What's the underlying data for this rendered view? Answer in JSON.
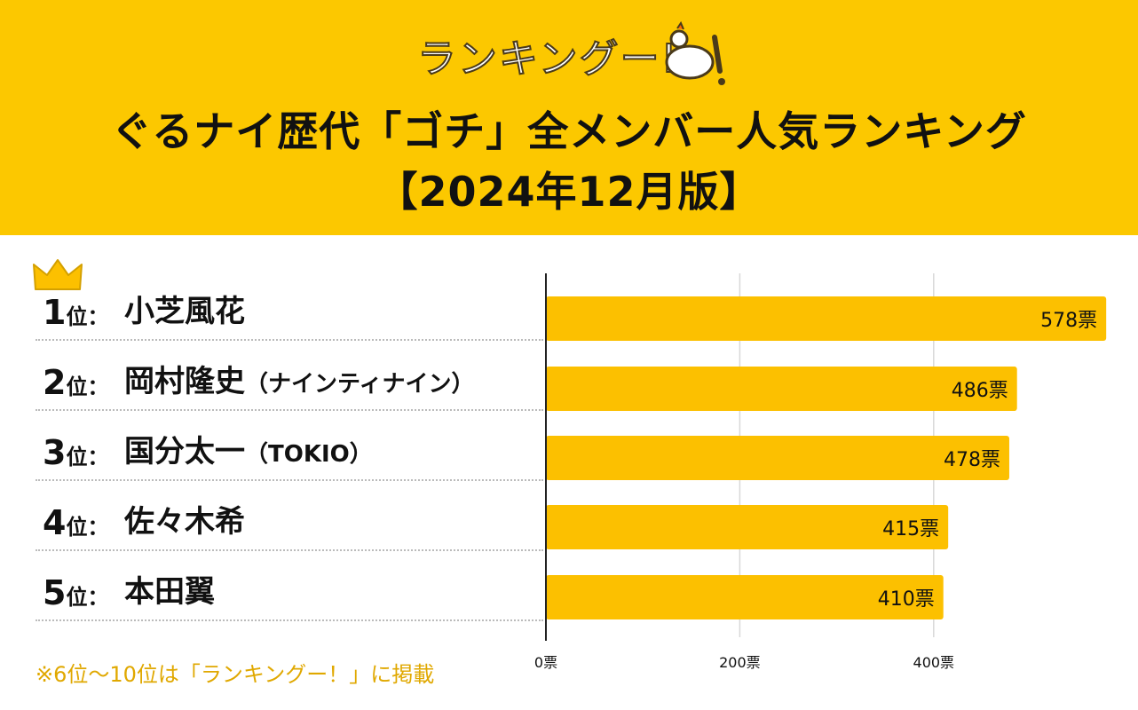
{
  "logo": {
    "text": "ランキングー!"
  },
  "title": {
    "line1": "ぐるナイ歴代「ゴチ」全メンバー人気ランキング",
    "line2": "【2024年12月版】"
  },
  "rows": [
    {
      "rank": "1",
      "unit": "位：",
      "name": "小芝風花",
      "sub": ""
    },
    {
      "rank": "2",
      "unit": "位：",
      "name": "岡村隆史",
      "sub": "（ナインティナイン）"
    },
    {
      "rank": "3",
      "unit": "位：",
      "name": "国分太一",
      "sub": "（TOKIO）"
    },
    {
      "rank": "4",
      "unit": "位：",
      "name": "佐々木希",
      "sub": ""
    },
    {
      "rank": "5",
      "unit": "位：",
      "name": "本田翼",
      "sub": ""
    }
  ],
  "footnote": "※6位〜10位は「ランキングー！」に掲載",
  "colors": {
    "bar": "#fcc000",
    "header": "#fcc800",
    "footnote": "#e0a800"
  },
  "chart_data": {
    "type": "bar",
    "orientation": "horizontal",
    "categories": [
      "小芝風花",
      "岡村隆史（ナインティナイン）",
      "国分太一（TOKIO）",
      "佐々木希",
      "本田翼"
    ],
    "values": [
      578,
      486,
      478,
      415,
      410
    ],
    "value_labels": [
      "578票",
      "486票",
      "478票",
      "415票",
      "410票"
    ],
    "xlim": [
      0,
      580
    ],
    "xticks": [
      0,
      200,
      400
    ],
    "xtick_labels": [
      "0票",
      "200票",
      "400票"
    ],
    "grid": true
  }
}
